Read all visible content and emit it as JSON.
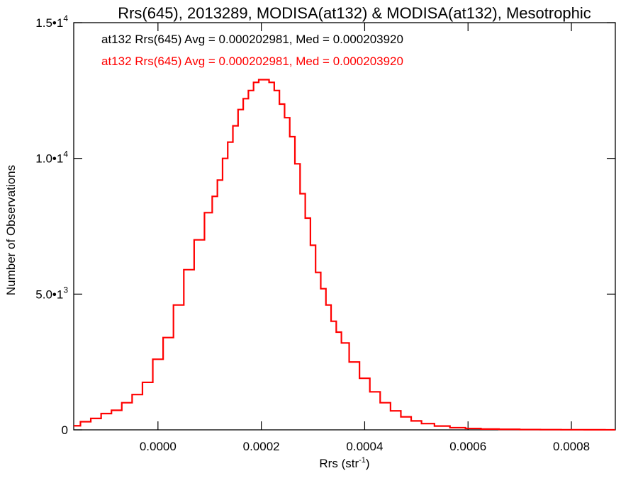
{
  "chart_data": {
    "type": "histogram",
    "title": "Rrs(645), 2013289, MODISA(at132) & MODISA(at132), Mesotrophic",
    "xlabel": "Rrs (str",
    "xlabel_sup": "-1",
    "xlabel_close": ")",
    "ylabel": "Number of Observations",
    "xlim": [
      -0.000163,
      0.000885
    ],
    "ylim": [
      0,
      15000
    ],
    "grid": false,
    "x_ticks": [
      {
        "value": 0.0,
        "label": "0.0000"
      },
      {
        "value": 0.0002,
        "label": "0.0002"
      },
      {
        "value": 0.0004,
        "label": "0.0004"
      },
      {
        "value": 0.0006,
        "label": "0.0006"
      },
      {
        "value": 0.0008,
        "label": "0.0008"
      }
    ],
    "y_ticks": [
      {
        "value": 0,
        "mantissa": "0",
        "exp": ""
      },
      {
        "value": 5000,
        "mantissa": "5.0•1",
        "exp": "3"
      },
      {
        "value": 10000,
        "mantissa": "1.0•1",
        "exp": "4"
      },
      {
        "value": 15000,
        "mantissa": "1.5•1",
        "exp": "4"
      }
    ],
    "legend_position": "top-left",
    "legend": [
      {
        "text": "at132 Rrs(645) Avg = 0.000202981, Med = 0.000203920",
        "color": "#000000"
      },
      {
        "text": "at132 Rrs(645) Avg = 0.000202981, Med = 0.000203920",
        "color": "#ff0000"
      }
    ],
    "series": [
      {
        "color": "#ff0000",
        "x": [
          -0.00016,
          -0.00014,
          -0.00012,
          -0.0001,
          -8e-05,
          -6e-05,
          -4e-05,
          -2e-05,
          0.0,
          2e-05,
          4e-05,
          6e-05,
          8e-05,
          0.0001,
          0.00011,
          0.00012,
          0.00013,
          0.00014,
          0.00015,
          0.00016,
          0.00017,
          0.00018,
          0.00019,
          0.0002,
          0.00021,
          0.00022,
          0.00023,
          0.00024,
          0.00025,
          0.00026,
          0.00027,
          0.00028,
          0.00029,
          0.0003,
          0.00031,
          0.00032,
          0.00033,
          0.00034,
          0.00035,
          0.00036,
          0.00038,
          0.0004,
          0.00042,
          0.00044,
          0.00046,
          0.00048,
          0.0005,
          0.00052,
          0.00055,
          0.00058,
          0.00061,
          0.00064,
          0.00068,
          0.00072,
          0.00076,
          0.0008,
          0.00085,
          0.00088
        ],
        "y": [
          150,
          300,
          420,
          600,
          720,
          1000,
          1300,
          1750,
          2600,
          3400,
          4600,
          5900,
          7000,
          8000,
          8600,
          9200,
          10000,
          10600,
          11200,
          11800,
          12200,
          12500,
          12800,
          12900,
          12900,
          12800,
          12500,
          12000,
          11500,
          10800,
          9800,
          8700,
          7800,
          6800,
          5800,
          5200,
          4600,
          4000,
          3600,
          3200,
          2500,
          1900,
          1400,
          1000,
          700,
          480,
          330,
          230,
          140,
          80,
          50,
          30,
          20,
          12,
          8,
          5,
          3,
          2
        ]
      }
    ]
  }
}
